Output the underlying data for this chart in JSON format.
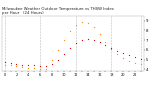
{
  "title_line1": "Milwaukee Weather Outdoor Temperature vs THSW Index",
  "title_line2": "per Hour   (24 Hours)",
  "title_fontsize": 2.8,
  "background_color": "#ffffff",
  "grid_color": "#bbbbbb",
  "hours": [
    0,
    1,
    2,
    3,
    4,
    5,
    6,
    7,
    8,
    9,
    10,
    11,
    12,
    13,
    14,
    15,
    16,
    17,
    18,
    19,
    20,
    21,
    22,
    23
  ],
  "temp_color": "#cc0000",
  "thsw_color": "#ff8800",
  "temp_values": [
    48,
    47,
    46,
    45,
    44,
    44,
    43,
    43,
    46,
    50,
    56,
    62,
    67,
    70,
    71,
    70,
    68,
    65,
    62,
    59,
    57,
    55,
    53,
    51
  ],
  "thsw_values": [
    45,
    44,
    43,
    42,
    41,
    41,
    40,
    40,
    50,
    60,
    70,
    79,
    85,
    88,
    87,
    83,
    76,
    68,
    61,
    56,
    52,
    49,
    47,
    46
  ],
  "ylim": [
    38,
    95
  ],
  "yticks": [
    40,
    50,
    60,
    70,
    80,
    90
  ],
  "ytick_labels": [
    "4",
    "5",
    "6",
    "7",
    "8",
    "9"
  ],
  "ytick_fontsize": 2.8,
  "xtick_fontsize": 2.5,
  "marker_size": 0.9,
  "grid_hours": [
    0,
    6,
    12,
    18,
    23
  ]
}
